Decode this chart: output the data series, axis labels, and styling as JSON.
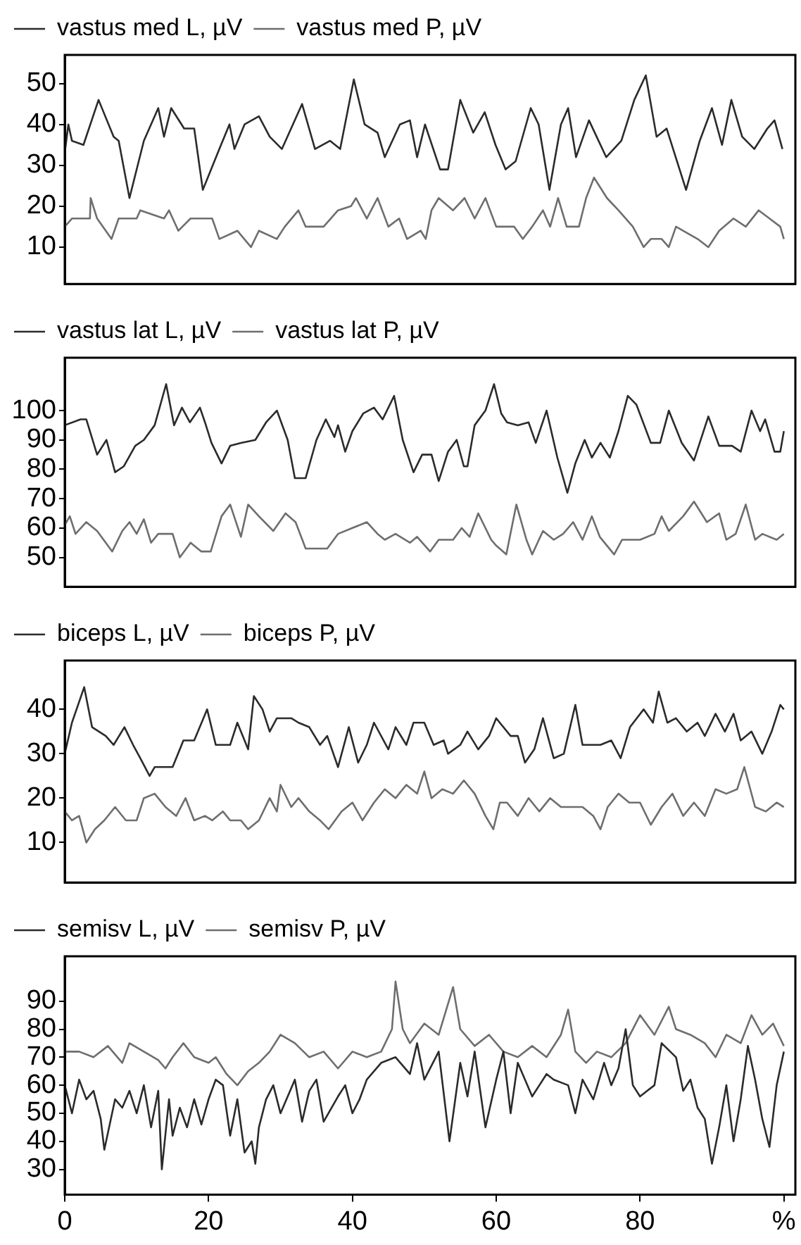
{
  "chart_data": [
    {
      "type": "line",
      "xlim": [
        0,
        101.6
      ],
      "ylim": [
        1,
        57
      ],
      "yticks": [
        10,
        20,
        30,
        40,
        50
      ],
      "tick_labels": "y",
      "grid": false,
      "legend": "top left",
      "series": [
        {
          "name": "vastus med L, µV",
          "color": "#2b2b2b",
          "x": [
            0,
            0.5,
            1,
            2.6,
            4.7,
            6.8,
            7.5,
            9,
            11,
            13,
            13.8,
            14.8,
            16.6,
            18,
            19.2,
            21.5,
            22.9,
            23.6,
            25,
            27,
            28.5,
            30.2,
            33,
            34.8,
            36.9,
            38.3,
            40.2,
            41.7,
            43.5,
            44.5,
            46.6,
            48,
            49,
            50.1,
            52.2,
            53.3,
            55,
            56.8,
            58.4,
            59.9,
            61.3,
            62.7,
            64.8,
            65.9,
            67.4,
            69,
            70,
            71.1,
            72.9,
            75.3,
            77.4,
            79.2,
            80.8,
            82.3,
            83.7,
            86.4,
            88.3,
            90,
            91.4,
            92.7,
            94.2,
            95.9,
            97.7,
            98.7,
            99.8
          ],
          "values": [
            33,
            40,
            36,
            35,
            46,
            37,
            36,
            22,
            36,
            44,
            37,
            44,
            39,
            39,
            24,
            34,
            40,
            34,
            40,
            42,
            37,
            34,
            45,
            34,
            36,
            34,
            51,
            40,
            38,
            32,
            40,
            41,
            32,
            40,
            29,
            29,
            46,
            38,
            43,
            35,
            29,
            31,
            44,
            40,
            24,
            40,
            44,
            32,
            41,
            32,
            36,
            46,
            52,
            37,
            39,
            24,
            36,
            44,
            35,
            46,
            37,
            34,
            39,
            41,
            34
          ]
        },
        {
          "name": "vastus med P, µV",
          "color": "#6e6e6e",
          "x": [
            0,
            1,
            3.5,
            3.6,
            4.5,
            6.5,
            7.5,
            10,
            10.5,
            13.8,
            14.5,
            15.8,
            17.5,
            20.5,
            21.5,
            24,
            25.9,
            27,
            29.5,
            30.6,
            32.5,
            33.5,
            36,
            38,
            39.8,
            40.5,
            42,
            43.5,
            45,
            46.5,
            47.6,
            49.5,
            50.2,
            51,
            52,
            54,
            55.6,
            57,
            58.5,
            60,
            62.5,
            63.7,
            65,
            66.5,
            67.5,
            68.6,
            69.8,
            71.5,
            72.5,
            73.6,
            75.4,
            77,
            79,
            80.5,
            81.5,
            83,
            84,
            85,
            88,
            89.5,
            91,
            93,
            94.7,
            96.5,
            98,
            99.5,
            100
          ],
          "values": [
            15,
            17,
            17,
            22,
            17,
            12,
            17,
            17,
            19,
            17,
            19,
            14,
            17,
            17,
            12,
            14,
            10,
            14,
            12,
            15,
            19,
            15,
            15,
            19,
            20,
            22,
            17,
            22,
            15,
            17,
            12,
            14,
            12,
            19,
            22,
            19,
            22,
            17,
            22,
            15,
            15,
            12,
            15,
            19,
            15,
            22,
            15,
            15,
            22,
            27,
            22,
            19,
            15,
            10,
            12,
            12,
            10,
            15,
            12,
            10,
            14,
            17,
            15,
            19,
            17,
            15,
            12
          ]
        }
      ]
    },
    {
      "type": "line",
      "xlim": [
        0,
        101.6
      ],
      "ylim": [
        40,
        118
      ],
      "yticks": [
        50,
        60,
        70,
        80,
        90,
        100
      ],
      "tick_labels": "y",
      "grid": false,
      "legend": "top left",
      "series": [
        {
          "name": "vastus lat L, µV",
          "color": "#2b2b2b",
          "x": [
            0,
            2.2,
            3,
            4.5,
            5.8,
            7,
            8.2,
            9.8,
            11,
            12.5,
            14.1,
            15.2,
            16.3,
            17.4,
            18.8,
            19.5,
            20.4,
            21.8,
            23,
            24.5,
            26.5,
            28,
            29.5,
            31,
            32,
            33.5,
            35,
            36.3,
            37.5,
            38,
            39,
            40,
            41.5,
            43,
            44.2,
            45.8,
            47,
            48.5,
            49.7,
            51,
            52,
            53.3,
            54.5,
            55.5,
            56,
            57,
            58.5,
            59.7,
            60.7,
            61.5,
            63,
            64.5,
            65.5,
            67,
            68.5,
            69.9,
            71,
            72.3,
            73.3,
            74.5,
            75.8,
            77,
            78.3,
            79.5,
            81.5,
            82.8,
            84,
            85.8,
            87.5,
            89.5,
            91,
            92.8,
            94,
            95.5,
            96.7,
            97.4,
            98.7,
            99.5,
            100
          ],
          "values": [
            95,
            97,
            97,
            85,
            90,
            79,
            81,
            88,
            90,
            95,
            109,
            95,
            101,
            96,
            101,
            96,
            89,
            82,
            88,
            89,
            90,
            96,
            100,
            90,
            77,
            77,
            90,
            97,
            91,
            95,
            86,
            93,
            99,
            101,
            97,
            105,
            90,
            79,
            85,
            85,
            76,
            86,
            90,
            81,
            81,
            95,
            100,
            109,
            99,
            96,
            95,
            96,
            89,
            100,
            84,
            72,
            82,
            90,
            84,
            89,
            84,
            93,
            105,
            102,
            89,
            89,
            100,
            89,
            83,
            98,
            88,
            88,
            86,
            100,
            93,
            97,
            86,
            86,
            93
          ]
        },
        {
          "name": "vastus lat P, µV",
          "color": "#6e6e6e",
          "x": [
            0,
            0.7,
            1.5,
            3,
            4.5,
            6.6,
            8,
            9,
            10,
            11,
            12,
            13,
            15,
            16,
            17.5,
            19,
            20.3,
            21.8,
            23,
            24.5,
            25.5,
            27,
            29,
            30.7,
            32.1,
            33.5,
            35,
            36.5,
            38,
            40,
            42,
            43.5,
            44.5,
            46,
            48,
            49,
            50.8,
            52,
            54,
            55.2,
            56.3,
            57.5,
            59.3,
            60,
            61.4,
            62.8,
            64.2,
            65,
            66.5,
            68,
            69.3,
            70.7,
            72,
            73.3,
            74.4,
            76.4,
            77.5,
            80,
            82,
            83,
            84,
            86,
            87.5,
            89.3,
            91,
            92,
            93.3,
            94.7,
            96,
            97,
            99,
            100
          ],
          "values": [
            61,
            64,
            58,
            62,
            59,
            52,
            59,
            62,
            58,
            63,
            55,
            58,
            58,
            50,
            55,
            52,
            52,
            64,
            68,
            57,
            68,
            64,
            59,
            65,
            62,
            53,
            53,
            53,
            58,
            60,
            62,
            58,
            56,
            58,
            55,
            57,
            52,
            56,
            56,
            60,
            57,
            65,
            56,
            54,
            51,
            68,
            56,
            51,
            59,
            56,
            58,
            62,
            56,
            64,
            57,
            51,
            56,
            56,
            58,
            64,
            59,
            64,
            69,
            62,
            65,
            56,
            58,
            68,
            56,
            58,
            56,
            58
          ]
        }
      ]
    },
    {
      "type": "line",
      "xlim": [
        0,
        101.6
      ],
      "ylim": [
        1,
        51
      ],
      "yticks": [
        10,
        20,
        30,
        40
      ],
      "tick_labels": "y",
      "grid": false,
      "legend": "top left",
      "series": [
        {
          "name": "biceps L, µV",
          "color": "#2b2b2b",
          "x": [
            0,
            1,
            2.7,
            3.8,
            5.7,
            6.8,
            8.3,
            9.5,
            10.5,
            11.8,
            12.5,
            15,
            16.5,
            18,
            19.8,
            21,
            23,
            24,
            25.5,
            26.3,
            27.5,
            28.5,
            29.5,
            31.5,
            32.5,
            34,
            35.5,
            36.5,
            38,
            39.5,
            40.8,
            42,
            43,
            45,
            46,
            47.5,
            48.5,
            50,
            51.3,
            52.7,
            53.3,
            55,
            56,
            57.5,
            59,
            60,
            62,
            63,
            64,
            65.3,
            66.5,
            68,
            69.4,
            71,
            72,
            74.5,
            76,
            77.3,
            78.6,
            80.5,
            81.8,
            82.6,
            83.8,
            85,
            86.5,
            88,
            89,
            90.5,
            91.8,
            93,
            94,
            95.5,
            97,
            98.3,
            99.5,
            100
          ],
          "values": [
            30,
            37,
            45,
            36,
            34,
            32,
            36,
            32,
            29,
            25,
            27,
            27,
            33,
            33,
            40,
            32,
            32,
            37,
            31,
            43,
            40,
            35,
            38,
            38,
            37,
            36,
            32,
            34,
            27,
            36,
            28,
            32,
            37,
            31,
            36,
            32,
            37,
            37,
            32,
            33,
            30,
            32,
            35,
            31,
            34,
            38,
            34,
            34,
            28,
            31,
            38,
            29,
            30,
            41,
            32,
            32,
            33,
            29,
            36,
            40,
            37,
            44,
            37,
            38,
            35,
            37,
            34,
            39,
            35,
            39,
            33,
            35,
            30,
            35,
            41,
            40
          ]
        },
        {
          "name": "biceps P, µV",
          "color": "#6e6e6e",
          "x": [
            0,
            1,
            2,
            3,
            4.2,
            5.5,
            7,
            8.5,
            10,
            11,
            12.5,
            14,
            15.5,
            16.8,
            18,
            19.5,
            20.5,
            22,
            23,
            24.5,
            25.5,
            27,
            28.5,
            29.5,
            30,
            31.5,
            32.5,
            34,
            35.5,
            36.7,
            38.5,
            40,
            41.4,
            43,
            44.5,
            46,
            47.5,
            49,
            50,
            51,
            52.5,
            54,
            55.5,
            57,
            58.5,
            59.6,
            60.5,
            61.5,
            63,
            64.5,
            66,
            67.5,
            69,
            70.5,
            72,
            73.5,
            74.5,
            75.5,
            77,
            78.5,
            80,
            81.5,
            83,
            84.5,
            86,
            87.5,
            89,
            90.5,
            92,
            93.5,
            94.5,
            96,
            97.5,
            99,
            100
          ],
          "values": [
            17,
            15,
            16,
            10,
            13,
            15,
            18,
            15,
            15,
            20,
            21,
            18,
            16,
            20,
            15,
            16,
            15,
            17,
            15,
            15,
            13,
            15,
            20,
            17,
            23,
            18,
            20,
            17,
            15,
            13,
            17,
            19,
            15,
            19,
            22,
            20,
            23,
            21,
            26,
            20,
            22,
            21,
            24,
            21,
            16,
            13,
            19,
            19,
            16,
            20,
            17,
            20,
            18,
            18,
            18,
            16,
            13,
            18,
            21,
            19,
            19,
            14,
            18,
            21,
            16,
            19,
            16,
            22,
            21,
            22,
            27,
            18,
            17,
            19,
            18
          ]
        }
      ]
    },
    {
      "type": "line",
      "xlim": [
        0,
        101.6
      ],
      "xticks": [
        0,
        20,
        40,
        60,
        80,
        {
          "value": 100,
          "label": "%"
        }
      ],
      "ylim": [
        21,
        106
      ],
      "yticks": [
        30,
        40,
        50,
        60,
        70,
        80,
        90
      ],
      "grid": false,
      "legend": "top left",
      "series": [
        {
          "name": "semisv L, µV",
          "color": "#2b2b2b",
          "x": [
            0,
            1,
            2,
            3,
            4,
            5,
            5.5,
            7,
            8,
            9,
            10,
            11,
            12,
            13,
            13.5,
            14.5,
            15,
            16,
            17,
            18,
            19,
            20,
            21,
            22,
            23,
            24,
            25,
            26,
            26.5,
            27,
            28,
            29,
            30,
            32,
            33,
            34,
            35,
            36,
            38,
            39,
            40,
            41,
            42,
            44,
            46,
            48,
            49,
            50,
            52,
            53.5,
            55,
            56,
            57,
            58.5,
            60,
            61,
            62,
            63,
            65,
            66,
            67,
            68,
            70,
            71,
            72,
            73.5,
            75,
            76,
            77,
            78,
            79,
            80,
            81,
            82,
            83,
            85,
            86,
            87,
            88,
            89,
            90,
            91,
            92,
            93,
            94,
            95,
            96,
            97,
            98,
            99,
            100
          ],
          "values": [
            60,
            50,
            62,
            55,
            58,
            48,
            37,
            55,
            52,
            58,
            50,
            60,
            45,
            58,
            30,
            55,
            42,
            52,
            45,
            55,
            46,
            55,
            62,
            60,
            42,
            55,
            36,
            40,
            32,
            45,
            55,
            60,
            50,
            62,
            47,
            58,
            62,
            47,
            56,
            60,
            50,
            55,
            62,
            68,
            70,
            64,
            75,
            62,
            72,
            40,
            68,
            56,
            72,
            45,
            62,
            72,
            50,
            68,
            56,
            60,
            64,
            62,
            60,
            50,
            62,
            55,
            68,
            60,
            66,
            80,
            60,
            56,
            58,
            60,
            75,
            70,
            58,
            62,
            52,
            48,
            32,
            45,
            60,
            40,
            55,
            74,
            62,
            48,
            38,
            60,
            72
          ]
        },
        {
          "name": "semisv P, µV",
          "color": "#6e6e6e",
          "x": [
            0,
            2,
            4,
            6,
            8,
            9,
            11,
            13,
            14,
            15,
            16.5,
            18,
            20,
            21,
            22.5,
            24,
            25.5,
            27,
            28.5,
            30,
            32,
            34,
            36,
            38,
            40,
            42,
            44,
            45.5,
            46,
            47,
            48,
            50,
            52,
            54,
            55,
            57,
            59,
            61,
            63,
            65,
            67,
            69,
            70,
            71,
            72.5,
            74,
            76,
            78,
            80,
            82,
            84,
            85,
            87,
            89,
            90.5,
            92,
            94,
            95.5,
            97,
            98.5,
            100
          ],
          "values": [
            72,
            72,
            70,
            74,
            68,
            75,
            72,
            69,
            66,
            70,
            75,
            70,
            68,
            70,
            64,
            60,
            65,
            68,
            72,
            78,
            75,
            70,
            72,
            66,
            72,
            70,
            72,
            80,
            97,
            80,
            75,
            82,
            78,
            95,
            80,
            74,
            78,
            72,
            70,
            74,
            70,
            78,
            87,
            72,
            68,
            72,
            70,
            75,
            85,
            78,
            88,
            80,
            78,
            75,
            70,
            78,
            75,
            85,
            78,
            82,
            74
          ]
        }
      ]
    }
  ]
}
